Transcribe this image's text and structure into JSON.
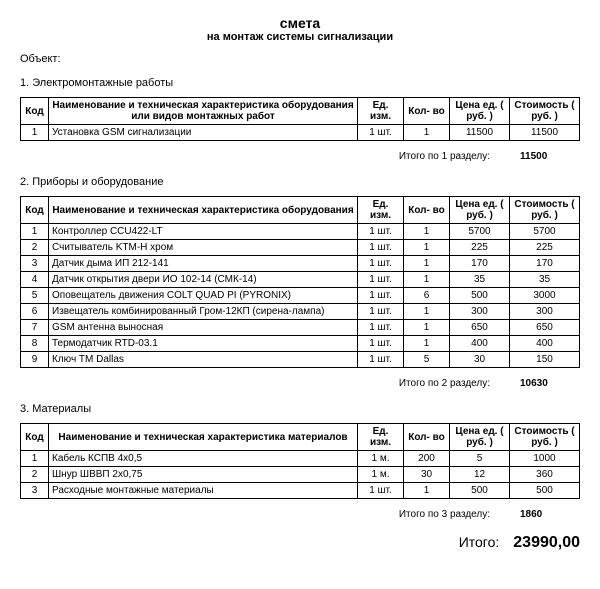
{
  "title": "смета",
  "subtitle": "на монтаж системы сигнализации",
  "object_label": "Объект:",
  "columns_common": {
    "code": "Код",
    "unit": "Ед. изм.",
    "qty": "Кол- во",
    "price": "Цена ед. ( руб. )",
    "cost": "Стоимость ( руб. )"
  },
  "sections": [
    {
      "heading": "1. Электромонтажные работы",
      "name_header": "Наименование и техническая характеристика оборудования или видов монтажных работ",
      "rows": [
        {
          "code": "1",
          "name": "Установка GSM сигнализации",
          "unit": "1 шт.",
          "qty": "1",
          "price": "11500",
          "cost": "11500"
        }
      ],
      "subtotal_label": "Итого по 1 разделу:",
      "subtotal": "11500"
    },
    {
      "heading": "2. Приборы и оборудование",
      "name_header": "Наименование и техническая характеристика оборудования",
      "rows": [
        {
          "code": "1",
          "name": "Контроллер CCU422-LT",
          "unit": "1 шт.",
          "qty": "1",
          "price": "5700",
          "cost": "5700"
        },
        {
          "code": "2",
          "name": "Считыватель KTM-H хром",
          "unit": "1 шт.",
          "qty": "1",
          "price": "225",
          "cost": "225"
        },
        {
          "code": "3",
          "name": "Датчик дыма ИП 212-141",
          "unit": "1 шт.",
          "qty": "1",
          "price": "170",
          "cost": "170"
        },
        {
          "code": "4",
          "name": "Датчик открытия двери ИО 102-14 (СМК-14)",
          "unit": "1 шт.",
          "qty": "1",
          "price": "35",
          "cost": "35"
        },
        {
          "code": "5",
          "name": "Оповещатель движения COLT QUAD PI (PYRONIX)",
          "unit": "1 шт.",
          "qty": "6",
          "price": "500",
          "cost": "3000"
        },
        {
          "code": "6",
          "name": "Извещатель комбинированный Гром-12КП (сирена-лампа)",
          "unit": "1 шт.",
          "qty": "1",
          "price": "300",
          "cost": "300"
        },
        {
          "code": "7",
          "name": "GSM антенна выносная",
          "unit": "1 шт.",
          "qty": "1",
          "price": "650",
          "cost": "650"
        },
        {
          "code": "8",
          "name": "Термодатчик RTD-03.1",
          "unit": "1 шт.",
          "qty": "1",
          "price": "400",
          "cost": "400"
        },
        {
          "code": "9",
          "name": "Ключ TM Dallas",
          "unit": "1 шт.",
          "qty": "5",
          "price": "30",
          "cost": "150"
        }
      ],
      "subtotal_label": "Итого по 2 разделу:",
      "subtotal": "10630"
    },
    {
      "heading": "3. Материалы",
      "name_header": "Наименование и техническая характеристика материалов",
      "rows": [
        {
          "code": "1",
          "name": "Кабель КСПВ 4x0,5",
          "unit": "1 м.",
          "qty": "200",
          "price": "5",
          "cost": "1000"
        },
        {
          "code": "2",
          "name": "Шнур ШВВП 2x0,75",
          "unit": "1 м.",
          "qty": "30",
          "price": "12",
          "cost": "360"
        },
        {
          "code": "3",
          "name": "Расходные монтажные материалы",
          "unit": "1 шт.",
          "qty": "1",
          "price": "500",
          "cost": "500"
        }
      ],
      "subtotal_label": "Итого по 3 разделу:",
      "subtotal": "1860"
    }
  ],
  "grand_total_label": "Итого:",
  "grand_total": "23990,00"
}
